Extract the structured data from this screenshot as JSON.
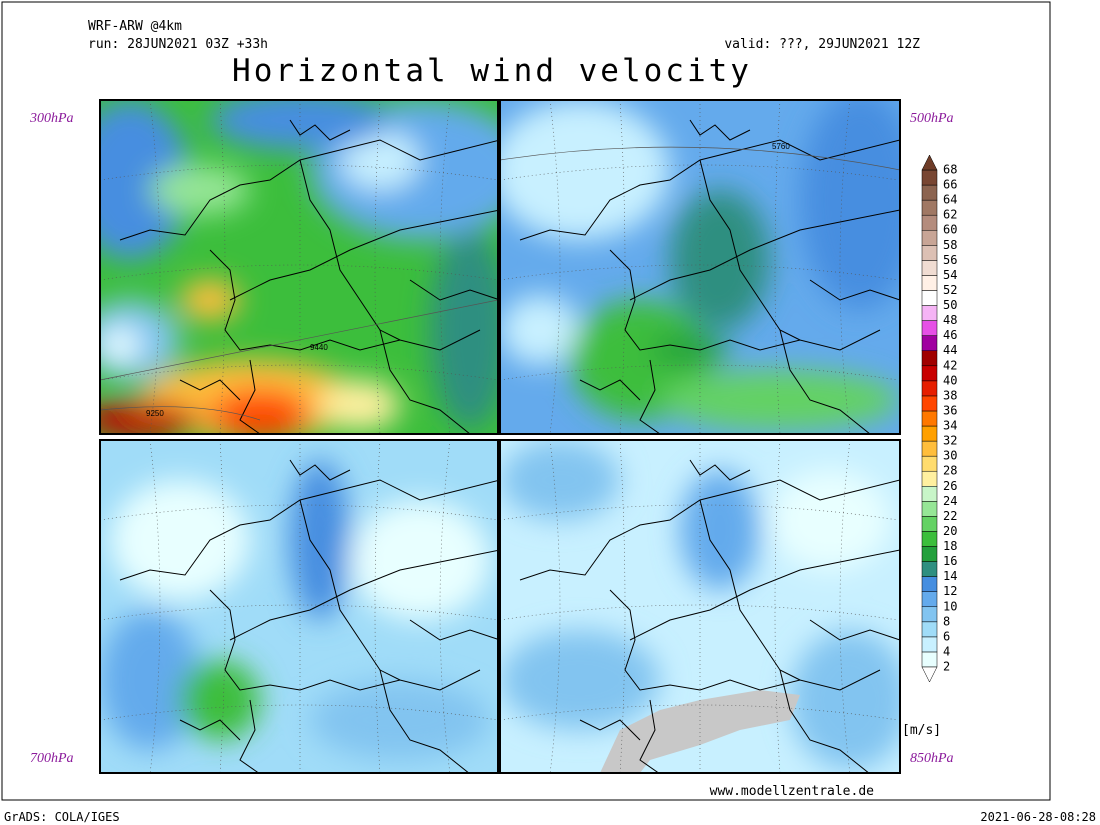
{
  "header": {
    "model": "WRF-ARW @4km",
    "run": "run: 28JUN2021 03Z +33h",
    "valid": "valid: ???, 29JUN2021 12Z",
    "title": "Horizontal wind velocity"
  },
  "panels": [
    {
      "level": "300hPa",
      "contour_labels": [
        "9440",
        "9250"
      ]
    },
    {
      "level": "500hPa",
      "contour_labels": [
        "5760"
      ]
    },
    {
      "level": "700hPa",
      "contour_labels": []
    },
    {
      "level": "850hPa",
      "contour_labels": []
    }
  ],
  "colorbar": {
    "unit": "[m/s]",
    "levels": [
      2,
      4,
      6,
      8,
      10,
      12,
      14,
      16,
      18,
      20,
      22,
      24,
      26,
      28,
      30,
      32,
      34,
      36,
      38,
      40,
      42,
      44,
      46,
      48,
      50,
      52,
      54,
      56,
      58,
      60,
      62,
      64,
      66,
      68
    ],
    "colors": [
      "#e8ffff",
      "#c8f0ff",
      "#a0dcf8",
      "#82c4f0",
      "#64aaec",
      "#468ee0",
      "#2f8f80",
      "#23a03c",
      "#3cbe3c",
      "#64d264",
      "#96e696",
      "#c8f5c8",
      "#fff0a0",
      "#ffdc6e",
      "#ffbe3c",
      "#ffa000",
      "#ff7800",
      "#ff4600",
      "#e61e00",
      "#c80000",
      "#a00000",
      "#a000a0",
      "#e650e6",
      "#f5b4f5",
      "#ffffff",
      "#fff0e6",
      "#f0dcd2",
      "#dcc0b4",
      "#c8a596",
      "#b48c7d",
      "#a07864",
      "#8c6450",
      "#784632"
    ],
    "below_color": "#ffffff",
    "above_color": "#6e3c28"
  },
  "footer": {
    "url": "www.modellzentrale.de",
    "software": "GrADS: COLA/IGES",
    "timestamp": "2021-06-28-08:28"
  }
}
